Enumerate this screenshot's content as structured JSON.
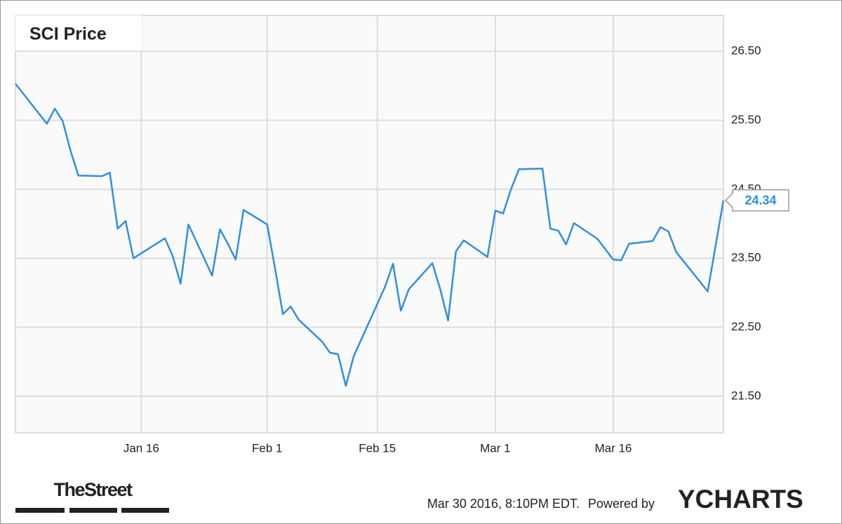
{
  "chart_data": {
    "type": "line",
    "title": "SCI Price",
    "x": [
      "Dec 31",
      "Jan 4",
      "Jan 5",
      "Jan 6",
      "Jan 7",
      "Jan 8",
      "Jan 11",
      "Jan 12",
      "Jan 13",
      "Jan 14",
      "Jan 15",
      "Jan 19",
      "Jan 20",
      "Jan 21",
      "Jan 22",
      "Jan 25",
      "Jan 26",
      "Jan 27",
      "Jan 28",
      "Jan 29",
      "Feb 1",
      "Feb 2",
      "Feb 3",
      "Feb 4",
      "Feb 5",
      "Feb 8",
      "Feb 9",
      "Feb 10",
      "Feb 11",
      "Feb 12",
      "Feb 16",
      "Feb 17",
      "Feb 18",
      "Feb 19",
      "Feb 22",
      "Feb 23",
      "Feb 24",
      "Feb 25",
      "Feb 26",
      "Feb 29",
      "Mar 1",
      "Mar 2",
      "Mar 3",
      "Mar 4",
      "Mar 7",
      "Mar 8",
      "Mar 9",
      "Mar 10",
      "Mar 11",
      "Mar 14",
      "Mar 15",
      "Mar 16",
      "Mar 17",
      "Mar 18",
      "Mar 21",
      "Mar 22",
      "Mar 23",
      "Mar 24",
      "Mar 28",
      "Mar 29",
      "Mar 30"
    ],
    "series": [
      {
        "name": "SCI Price",
        "color": "#2f8fe3",
        "values": [
          26.03,
          25.45,
          25.67,
          25.49,
          25.06,
          24.7,
          24.69,
          24.74,
          23.93,
          24.04,
          23.5,
          23.79,
          23.53,
          23.13,
          23.99,
          23.25,
          23.92,
          23.71,
          23.48,
          24.2,
          23.99,
          23.35,
          22.69,
          22.8,
          22.61,
          22.29,
          22.13,
          22.11,
          21.65,
          22.08,
          23.09,
          23.42,
          22.74,
          23.05,
          23.43,
          23.05,
          22.6,
          23.6,
          23.76,
          23.52,
          24.19,
          24.15,
          24.5,
          24.79,
          24.8,
          23.93,
          23.9,
          23.7,
          24.01,
          23.78,
          23.63,
          23.48,
          23.47,
          23.71,
          23.75,
          23.95,
          23.89,
          23.59,
          23.02,
          23.68,
          24.34
        ]
      }
    ],
    "xlim": [
      "Dec 31",
      "Mar 30"
    ],
    "xticks": [
      "Jan 16",
      "Feb 1",
      "Feb 15",
      "Mar 1",
      "Mar 16"
    ],
    "ylim": [
      20.97,
      27.02
    ],
    "yticks": [
      {
        "value": 21.5,
        "label": "21.50"
      },
      {
        "value": 22.5,
        "label": "22.50"
      },
      {
        "value": 23.5,
        "label": "23.50"
      },
      {
        "value": 24.5,
        "label": "24.50"
      },
      {
        "value": 25.5,
        "label": "25.50"
      },
      {
        "value": 26.5,
        "label": "26.50"
      }
    ],
    "grid": true,
    "source": "TheStreet",
    "timestamp": "Mar 30 2016, 8:10PM EDT.",
    "powered_by": "Powered by",
    "brand": "YCHARTS"
  }
}
